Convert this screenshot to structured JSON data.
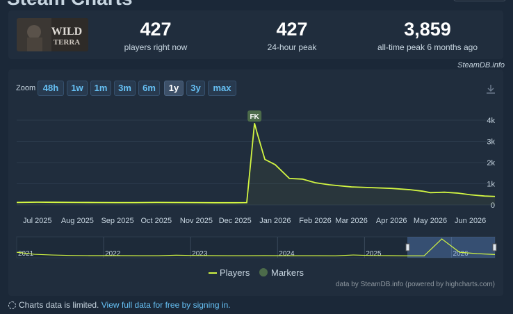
{
  "page": {
    "title": "Steam Charts"
  },
  "stats": [
    {
      "value": "427",
      "label": "players right now"
    },
    {
      "value": "427",
      "label": "24-hour peak"
    },
    {
      "value": "3,859",
      "label": "all-time peak 6 months ago"
    }
  ],
  "credit_top": "SteamDB.info",
  "zoom": {
    "label": "Zoom",
    "buttons": [
      "48h",
      "1w",
      "1m",
      "3m",
      "6m",
      "1y",
      "3y",
      "max"
    ],
    "active": "1y"
  },
  "credit_bottom": "data by SteamDB.info (powered by highcharts.com)",
  "footer": {
    "text": "Charts data is limited.",
    "link": "View full data for free by signing in."
  },
  "colors": {
    "line": "#d2f542",
    "marker": "#4c6b4a",
    "accent": "#66c0f4"
  },
  "chart_data": {
    "type": "line",
    "series": [
      {
        "name": "Players",
        "x": [
          "2025-06-15",
          "2025-07-01",
          "2025-07-15",
          "2025-08-01",
          "2025-08-15",
          "2025-09-01",
          "2025-09-15",
          "2025-10-01",
          "2025-10-15",
          "2025-11-01",
          "2025-11-15",
          "2025-12-01",
          "2025-12-10",
          "2025-12-16",
          "2025-12-18",
          "2025-12-24",
          "2026-01-01",
          "2026-01-12",
          "2026-01-22",
          "2026-02-01",
          "2026-02-12",
          "2026-03-01",
          "2026-03-15",
          "2026-04-01",
          "2026-04-15",
          "2026-04-25",
          "2026-05-01",
          "2026-05-12",
          "2026-05-22",
          "2026-06-01",
          "2026-06-12",
          "2026-06-20"
        ],
        "values": [
          120,
          130,
          125,
          120,
          115,
          110,
          110,
          120,
          115,
          110,
          105,
          105,
          110,
          3859,
          3400,
          2150,
          1900,
          1250,
          1220,
          1050,
          950,
          850,
          820,
          780,
          720,
          650,
          580,
          600,
          560,
          480,
          420,
          400
        ]
      }
    ],
    "markers": [
      {
        "label": "FK",
        "x": "2025-12-16"
      }
    ],
    "legend": [
      "Players",
      "Markers"
    ],
    "x_ticks": [
      "Jul 2025",
      "Aug 2025",
      "Sep 2025",
      "Oct 2025",
      "Nov 2025",
      "Dec 2025",
      "Jan 2026",
      "Feb 2026",
      "Mar 2026",
      "Apr 2026",
      "May 2026",
      "Jun 2026"
    ],
    "y_ticks": [
      "0",
      "1k",
      "2k",
      "3k",
      "4k"
    ],
    "ylim": [
      0,
      4000
    ],
    "navigator": {
      "years": [
        "2021",
        "2022",
        "2023",
        "2024",
        "2025",
        "2026"
      ],
      "values": [
        900,
        450,
        300,
        200,
        160,
        150,
        150,
        140,
        130,
        250,
        180,
        150,
        140,
        130,
        150,
        140,
        140,
        130,
        120,
        300,
        180,
        150,
        120,
        110,
        3859,
        900,
        600,
        400
      ]
    },
    "grid": true,
    "legend_position": "bottom-center"
  }
}
